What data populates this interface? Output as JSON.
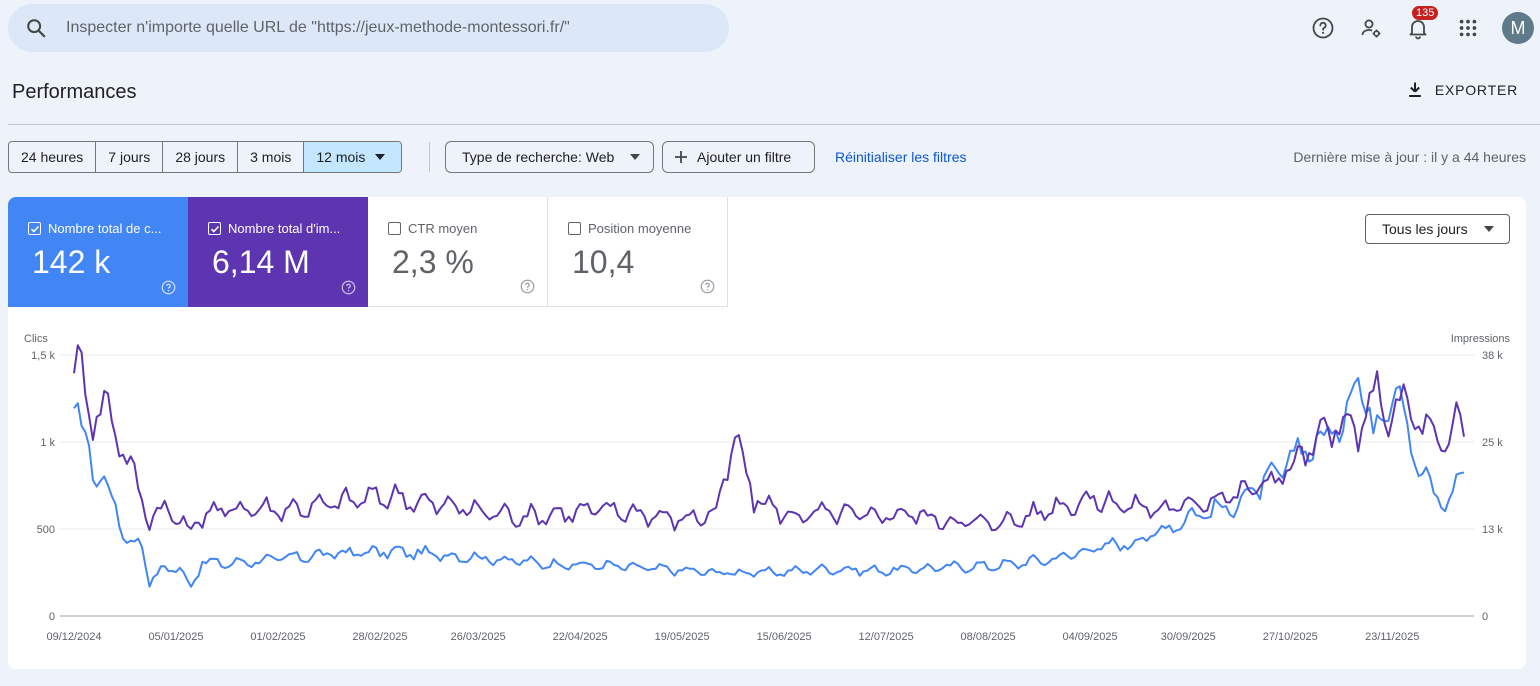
{
  "search": {
    "placeholder": "Inspecter n'importe quelle URL de \"https://jeux-methode-montessori.fr/\""
  },
  "topbar": {
    "notification_count": "135",
    "avatar_initial": "M"
  },
  "header": {
    "title": "Performances",
    "export_label": "EXPORTER"
  },
  "filters": {
    "ranges": [
      "24 heures",
      "7 jours",
      "28 jours",
      "3 mois",
      "12 mois"
    ],
    "active_range": "12 mois",
    "search_type": "Type de recherche: Web",
    "add_filter": "Ajouter un filtre",
    "reset": "Réinitialiser les filtres",
    "last_update": "Dernière mise à jour : il y a 44 heures"
  },
  "metrics": {
    "clicks": {
      "label": "Nombre total de c...",
      "value": "142 k",
      "checked": true,
      "color": "#4285f4"
    },
    "impressions": {
      "label": "Nombre total d'im...",
      "value": "6,14 M",
      "checked": true,
      "color": "#5e35b1"
    },
    "ctr": {
      "label": "CTR moyen",
      "value": "2,3 %",
      "checked": false
    },
    "position": {
      "label": "Position moyenne",
      "value": "10,4",
      "checked": false
    }
  },
  "day_select": {
    "label": "Tous les jours"
  },
  "colors": {
    "clicks": "#4285f4",
    "impressions": "#5e35b1",
    "selected_range_bg": "#c2e7ff",
    "link": "#0b57d0"
  },
  "chart_data": {
    "type": "line",
    "ylabel_left": "Clics",
    "ylabel_right": "Impressions",
    "y_left_ticks": [
      "0",
      "500",
      "1 k",
      "1,5 k"
    ],
    "y_right_ticks": [
      "0",
      "13 k",
      "25 k",
      "38 k"
    ],
    "ylim_left": [
      0,
      1500
    ],
    "ylim_right": [
      0,
      38000
    ],
    "x_tick_labels": [
      "09/12/2024",
      "05/01/2025",
      "01/02/2025",
      "28/02/2025",
      "26/03/2025",
      "22/04/2025",
      "19/05/2025",
      "15/06/2025",
      "12/07/2025",
      "08/08/2025",
      "04/09/2025",
      "30/09/2025",
      "27/10/2025",
      "23/11/2025"
    ],
    "x_start": "2024-12-09",
    "days": 369,
    "series": [
      {
        "name": "Clics",
        "color": "#4285f4",
        "axis": "left",
        "anchors": [
          [
            0,
            1140
          ],
          [
            3,
            1040
          ],
          [
            6,
            800
          ],
          [
            10,
            700
          ],
          [
            14,
            420
          ],
          [
            18,
            420
          ],
          [
            20,
            190
          ],
          [
            24,
            280
          ],
          [
            28,
            270
          ],
          [
            31,
            170
          ],
          [
            34,
            310
          ],
          [
            40,
            300
          ],
          [
            55,
            330
          ],
          [
            70,
            360
          ],
          [
            85,
            370
          ],
          [
            105,
            340
          ],
          [
            125,
            300
          ],
          [
            140,
            290
          ],
          [
            155,
            270
          ],
          [
            170,
            250
          ],
          [
            185,
            250
          ],
          [
            200,
            270
          ],
          [
            215,
            260
          ],
          [
            230,
            280
          ],
          [
            245,
            290
          ],
          [
            260,
            330
          ],
          [
            270,
            390
          ],
          [
            280,
            420
          ],
          [
            290,
            510
          ],
          [
            296,
            580
          ],
          [
            300,
            600
          ],
          [
            306,
            620
          ],
          [
            312,
            720
          ],
          [
            318,
            800
          ],
          [
            324,
            950
          ],
          [
            330,
            1000
          ],
          [
            336,
            1120
          ],
          [
            340,
            1420
          ],
          [
            344,
            1050
          ],
          [
            350,
            1380
          ],
          [
            355,
            900
          ],
          [
            360,
            700
          ],
          [
            364,
            650
          ],
          [
            368,
            860
          ]
        ]
      },
      {
        "name": "Impressions",
        "color": "#5e35b1",
        "axis": "right",
        "anchors": [
          [
            0,
            37000
          ],
          [
            2,
            35000
          ],
          [
            5,
            29000
          ],
          [
            8,
            31000
          ],
          [
            12,
            26000
          ],
          [
            16,
            20000
          ],
          [
            20,
            14000
          ],
          [
            24,
            16000
          ],
          [
            30,
            12500
          ],
          [
            35,
            15000
          ],
          [
            45,
            15800
          ],
          [
            55,
            15500
          ],
          [
            65,
            16000
          ],
          [
            75,
            17000
          ],
          [
            85,
            17500
          ],
          [
            92,
            16500
          ],
          [
            100,
            16000
          ],
          [
            110,
            15000
          ],
          [
            120,
            14500
          ],
          [
            130,
            15000
          ],
          [
            140,
            15500
          ],
          [
            150,
            15000
          ],
          [
            160,
            14000
          ],
          [
            170,
            15000
          ],
          [
            175,
            26000
          ],
          [
            180,
            17000
          ],
          [
            190,
            14500
          ],
          [
            200,
            15000
          ],
          [
            210,
            14500
          ],
          [
            220,
            15000
          ],
          [
            230,
            14000
          ],
          [
            240,
            13500
          ],
          [
            250,
            14000
          ],
          [
            260,
            16000
          ],
          [
            270,
            17000
          ],
          [
            280,
            16000
          ],
          [
            290,
            15500
          ],
          [
            300,
            17000
          ],
          [
            310,
            18000
          ],
          [
            318,
            20000
          ],
          [
            325,
            23000
          ],
          [
            330,
            26000
          ],
          [
            336,
            28000
          ],
          [
            340,
            26000
          ],
          [
            344,
            33000
          ],
          [
            348,
            29000
          ],
          [
            352,
            31000
          ],
          [
            358,
            27000
          ],
          [
            362,
            25000
          ],
          [
            364,
            24000
          ],
          [
            366,
            29000
          ],
          [
            368,
            27500
          ]
        ]
      }
    ]
  }
}
